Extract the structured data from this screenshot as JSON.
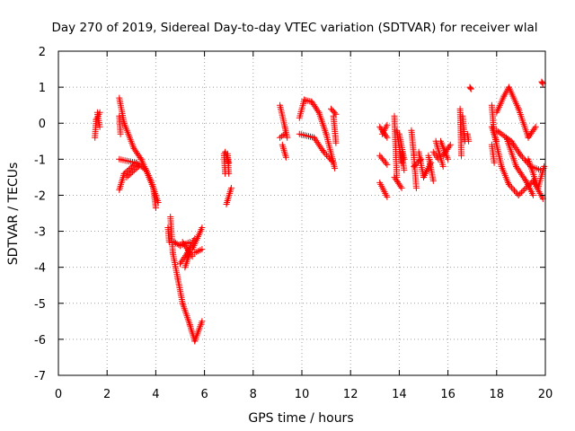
{
  "colors": {
    "background": "#ffffff",
    "series": "#ff0000",
    "grid": "#a0a0a0",
    "axis": "#000000"
  },
  "chart_data": {
    "type": "scatter",
    "title": "Day 270 of 2019, Sidereal Day-to-day VTEC variation (SDTVAR) for receiver wlal",
    "xlabel": "GPS time / hours",
    "ylabel": "SDTVAR / TECUs",
    "xlim": [
      0,
      20
    ],
    "ylim": [
      -7,
      2
    ],
    "xticks": [
      0,
      2,
      4,
      6,
      8,
      10,
      12,
      14,
      16,
      18,
      20
    ],
    "yticks": [
      2,
      1,
      0,
      -1,
      -2,
      -3,
      -4,
      -5,
      -6,
      -7
    ],
    "grid": true,
    "marker": "+",
    "series": [
      {
        "name": "SDTVAR",
        "segments": [
          {
            "x0": 1.5,
            "y0": -0.4,
            "x1": 1.55,
            "y1": 0.1
          },
          {
            "x0": 1.55,
            "y0": 0.1,
            "x1": 1.7,
            "y1": 0.3
          },
          {
            "x0": 1.6,
            "y0": 0.3,
            "x1": 1.7,
            "y1": -0.1
          },
          {
            "x0": 2.5,
            "y0": 0.7,
            "x1": 2.7,
            "y1": 0.0
          },
          {
            "x0": 2.5,
            "y0": 0.2,
            "x1": 2.55,
            "y1": -0.3
          },
          {
            "x0": 2.7,
            "y0": 0.0,
            "x1": 3.1,
            "y1": -0.7
          },
          {
            "x0": 3.1,
            "y0": -0.7,
            "x1": 3.4,
            "y1": -1.0
          },
          {
            "x0": 2.5,
            "y0": -1.0,
            "x1": 3.2,
            "y1": -1.1
          },
          {
            "x0": 2.5,
            "y0": -1.85,
            "x1": 2.7,
            "y1": -1.4
          },
          {
            "x0": 2.7,
            "y0": -1.4,
            "x1": 3.2,
            "y1": -1.1
          },
          {
            "x0": 2.8,
            "y0": -1.5,
            "x1": 3.3,
            "y1": -1.2
          },
          {
            "x0": 3.2,
            "y0": -1.1,
            "x1": 3.6,
            "y1": -1.3
          },
          {
            "x0": 3.4,
            "y0": -1.0,
            "x1": 3.8,
            "y1": -1.6
          },
          {
            "x0": 3.6,
            "y0": -1.3,
            "x1": 3.9,
            "y1": -1.8
          },
          {
            "x0": 3.8,
            "y0": -1.6,
            "x1": 4.1,
            "y1": -2.2
          },
          {
            "x0": 3.9,
            "y0": -1.8,
            "x1": 4.0,
            "y1": -2.35
          },
          {
            "x0": 4.6,
            "y0": -2.6,
            "x1": 4.7,
            "y1": -3.6
          },
          {
            "x0": 4.5,
            "y0": -2.9,
            "x1": 4.55,
            "y1": -3.3
          },
          {
            "x0": 4.7,
            "y0": -3.6,
            "x1": 4.9,
            "y1": -4.3
          },
          {
            "x0": 4.75,
            "y0": -3.3,
            "x1": 5.0,
            "y1": -3.4
          },
          {
            "x0": 5.0,
            "y0": -3.4,
            "x1": 5.4,
            "y1": -3.3
          },
          {
            "x0": 5.1,
            "y0": -3.3,
            "x1": 5.5,
            "y1": -3.7
          },
          {
            "x0": 5.0,
            "y0": -3.9,
            "x1": 5.4,
            "y1": -3.5
          },
          {
            "x0": 5.2,
            "y0": -4.0,
            "x1": 5.4,
            "y1": -3.6
          },
          {
            "x0": 5.3,
            "y0": -3.6,
            "x1": 5.6,
            "y1": -3.2
          },
          {
            "x0": 5.5,
            "y0": -3.5,
            "x1": 5.9,
            "y1": -2.9
          },
          {
            "x0": 5.6,
            "y0": -3.6,
            "x1": 5.9,
            "y1": -3.5
          },
          {
            "x0": 4.9,
            "y0": -4.3,
            "x1": 5.1,
            "y1": -5.0
          },
          {
            "x0": 5.1,
            "y0": -5.0,
            "x1": 5.4,
            "y1": -5.6
          },
          {
            "x0": 5.4,
            "y0": -5.6,
            "x1": 5.6,
            "y1": -6.05
          },
          {
            "x0": 5.6,
            "y0": -6.05,
            "x1": 5.9,
            "y1": -5.5
          },
          {
            "x0": 6.8,
            "y0": -0.85,
            "x1": 6.85,
            "y1": -1.4
          },
          {
            "x0": 6.85,
            "y0": -0.8,
            "x1": 7.0,
            "y1": -1.1
          },
          {
            "x0": 7.0,
            "y0": -1.4,
            "x1": 6.95,
            "y1": -0.85
          },
          {
            "x0": 6.9,
            "y0": -2.25,
            "x1": 7.1,
            "y1": -1.8
          },
          {
            "x0": 9.1,
            "y0": 0.5,
            "x1": 9.3,
            "y1": -0.1
          },
          {
            "x0": 9.1,
            "y0": -0.4,
            "x1": 9.3,
            "y1": -0.3
          },
          {
            "x0": 9.2,
            "y0": -0.6,
            "x1": 9.35,
            "y1": -0.95
          },
          {
            "x0": 9.3,
            "y0": -0.1,
            "x1": 9.4,
            "y1": -0.4
          },
          {
            "x0": 9.9,
            "y0": 0.15,
            "x1": 10.1,
            "y1": 0.65
          },
          {
            "x0": 10.1,
            "y0": 0.65,
            "x1": 10.4,
            "y1": 0.6
          },
          {
            "x0": 10.4,
            "y0": 0.6,
            "x1": 10.7,
            "y1": 0.3
          },
          {
            "x0": 10.7,
            "y0": 0.3,
            "x1": 11.0,
            "y1": -0.3
          },
          {
            "x0": 11.0,
            "y0": -0.3,
            "x1": 11.35,
            "y1": -1.25
          },
          {
            "x0": 9.9,
            "y0": -0.3,
            "x1": 10.5,
            "y1": -0.4
          },
          {
            "x0": 10.5,
            "y0": -0.4,
            "x1": 10.9,
            "y1": -0.8
          },
          {
            "x0": 10.9,
            "y0": -0.8,
            "x1": 11.3,
            "y1": -1.1
          },
          {
            "x0": 11.2,
            "y0": 0.4,
            "x1": 11.4,
            "y1": 0.25
          },
          {
            "x0": 11.3,
            "y0": 0.2,
            "x1": 11.4,
            "y1": -0.55
          },
          {
            "x0": 13.2,
            "y0": -0.1,
            "x1": 13.5,
            "y1": -0.4
          },
          {
            "x0": 13.3,
            "y0": -0.3,
            "x1": 13.5,
            "y1": -0.05
          },
          {
            "x0": 13.2,
            "y0": -0.9,
            "x1": 13.5,
            "y1": -1.15
          },
          {
            "x0": 13.2,
            "y0": -1.65,
            "x1": 13.5,
            "y1": -2.05
          },
          {
            "x0": 13.8,
            "y0": 0.2,
            "x1": 13.9,
            "y1": -1.5
          },
          {
            "x0": 13.9,
            "y0": -0.2,
            "x1": 14.1,
            "y1": -1.1
          },
          {
            "x0": 14.0,
            "y0": -0.3,
            "x1": 14.2,
            "y1": -1.0
          },
          {
            "x0": 13.8,
            "y0": -1.5,
            "x1": 14.1,
            "y1": -1.8
          },
          {
            "x0": 14.1,
            "y0": -0.8,
            "x1": 14.2,
            "y1": -1.3
          },
          {
            "x0": 14.5,
            "y0": -0.2,
            "x1": 14.6,
            "y1": -0.9
          },
          {
            "x0": 14.6,
            "y0": -0.9,
            "x1": 14.7,
            "y1": -1.8
          },
          {
            "x0": 14.6,
            "y0": -1.2,
            "x1": 14.9,
            "y1": -1.0
          },
          {
            "x0": 14.8,
            "y0": -0.8,
            "x1": 15.0,
            "y1": -1.5
          },
          {
            "x0": 15.0,
            "y0": -1.5,
            "x1": 15.3,
            "y1": -1.1
          },
          {
            "x0": 15.2,
            "y0": -0.9,
            "x1": 15.4,
            "y1": -1.6
          },
          {
            "x0": 15.4,
            "y0": -0.8,
            "x1": 15.6,
            "y1": -1.0
          },
          {
            "x0": 15.5,
            "y0": -0.5,
            "x1": 15.8,
            "y1": -1.2
          },
          {
            "x0": 15.7,
            "y0": -0.5,
            "x1": 16.0,
            "y1": -1.0
          },
          {
            "x0": 15.8,
            "y0": -0.9,
            "x1": 16.1,
            "y1": -0.6
          },
          {
            "x0": 16.5,
            "y0": 0.4,
            "x1": 16.55,
            "y1": -0.9
          },
          {
            "x0": 16.6,
            "y0": 0.2,
            "x1": 16.7,
            "y1": -0.5
          },
          {
            "x0": 16.9,
            "y0": 1.0,
            "x1": 16.95,
            "y1": 0.95
          },
          {
            "x0": 16.8,
            "y0": -0.3,
            "x1": 16.85,
            "y1": -0.5
          },
          {
            "x0": 17.8,
            "y0": 0.5,
            "x1": 17.9,
            "y1": -0.3
          },
          {
            "x0": 17.8,
            "y0": -0.1,
            "x1": 18.0,
            "y1": -0.5
          },
          {
            "x0": 17.8,
            "y0": -0.6,
            "x1": 17.9,
            "y1": -1.1
          },
          {
            "x0": 17.9,
            "y0": -0.3,
            "x1": 18.2,
            "y1": -1.2
          },
          {
            "x0": 18.2,
            "y0": -1.2,
            "x1": 18.5,
            "y1": -1.7
          },
          {
            "x0": 18.5,
            "y0": -1.7,
            "x1": 18.9,
            "y1": -2.0
          },
          {
            "x0": 18.0,
            "y0": 0.3,
            "x1": 18.3,
            "y1": 0.75
          },
          {
            "x0": 18.3,
            "y0": 0.75,
            "x1": 18.5,
            "y1": 1.0
          },
          {
            "x0": 18.5,
            "y0": 1.0,
            "x1": 18.9,
            "y1": 0.4
          },
          {
            "x0": 18.9,
            "y0": 0.4,
            "x1": 19.3,
            "y1": -0.4
          },
          {
            "x0": 19.3,
            "y0": -0.4,
            "x1": 19.6,
            "y1": -0.1
          },
          {
            "x0": 18.0,
            "y0": -0.2,
            "x1": 18.6,
            "y1": -0.5
          },
          {
            "x0": 18.6,
            "y0": -0.5,
            "x1": 19.0,
            "y1": -0.9
          },
          {
            "x0": 19.0,
            "y0": -0.9,
            "x1": 19.4,
            "y1": -1.2
          },
          {
            "x0": 19.4,
            "y0": -1.2,
            "x1": 19.8,
            "y1": -1.3
          },
          {
            "x0": 18.4,
            "y0": -0.4,
            "x1": 18.8,
            "y1": -1.2
          },
          {
            "x0": 18.8,
            "y0": -1.2,
            "x1": 19.2,
            "y1": -1.6
          },
          {
            "x0": 19.2,
            "y0": -1.6,
            "x1": 19.5,
            "y1": -2.0
          },
          {
            "x0": 18.9,
            "y0": -2.0,
            "x1": 19.5,
            "y1": -1.6
          },
          {
            "x0": 19.5,
            "y0": -1.6,
            "x1": 19.9,
            "y1": -2.1
          },
          {
            "x0": 19.3,
            "y0": -1.0,
            "x1": 19.7,
            "y1": -1.8
          },
          {
            "x0": 19.7,
            "y0": -1.8,
            "x1": 19.95,
            "y1": -1.2
          },
          {
            "x0": 19.85,
            "y0": 1.15,
            "x1": 19.9,
            "y1": 1.1
          }
        ]
      }
    ]
  }
}
